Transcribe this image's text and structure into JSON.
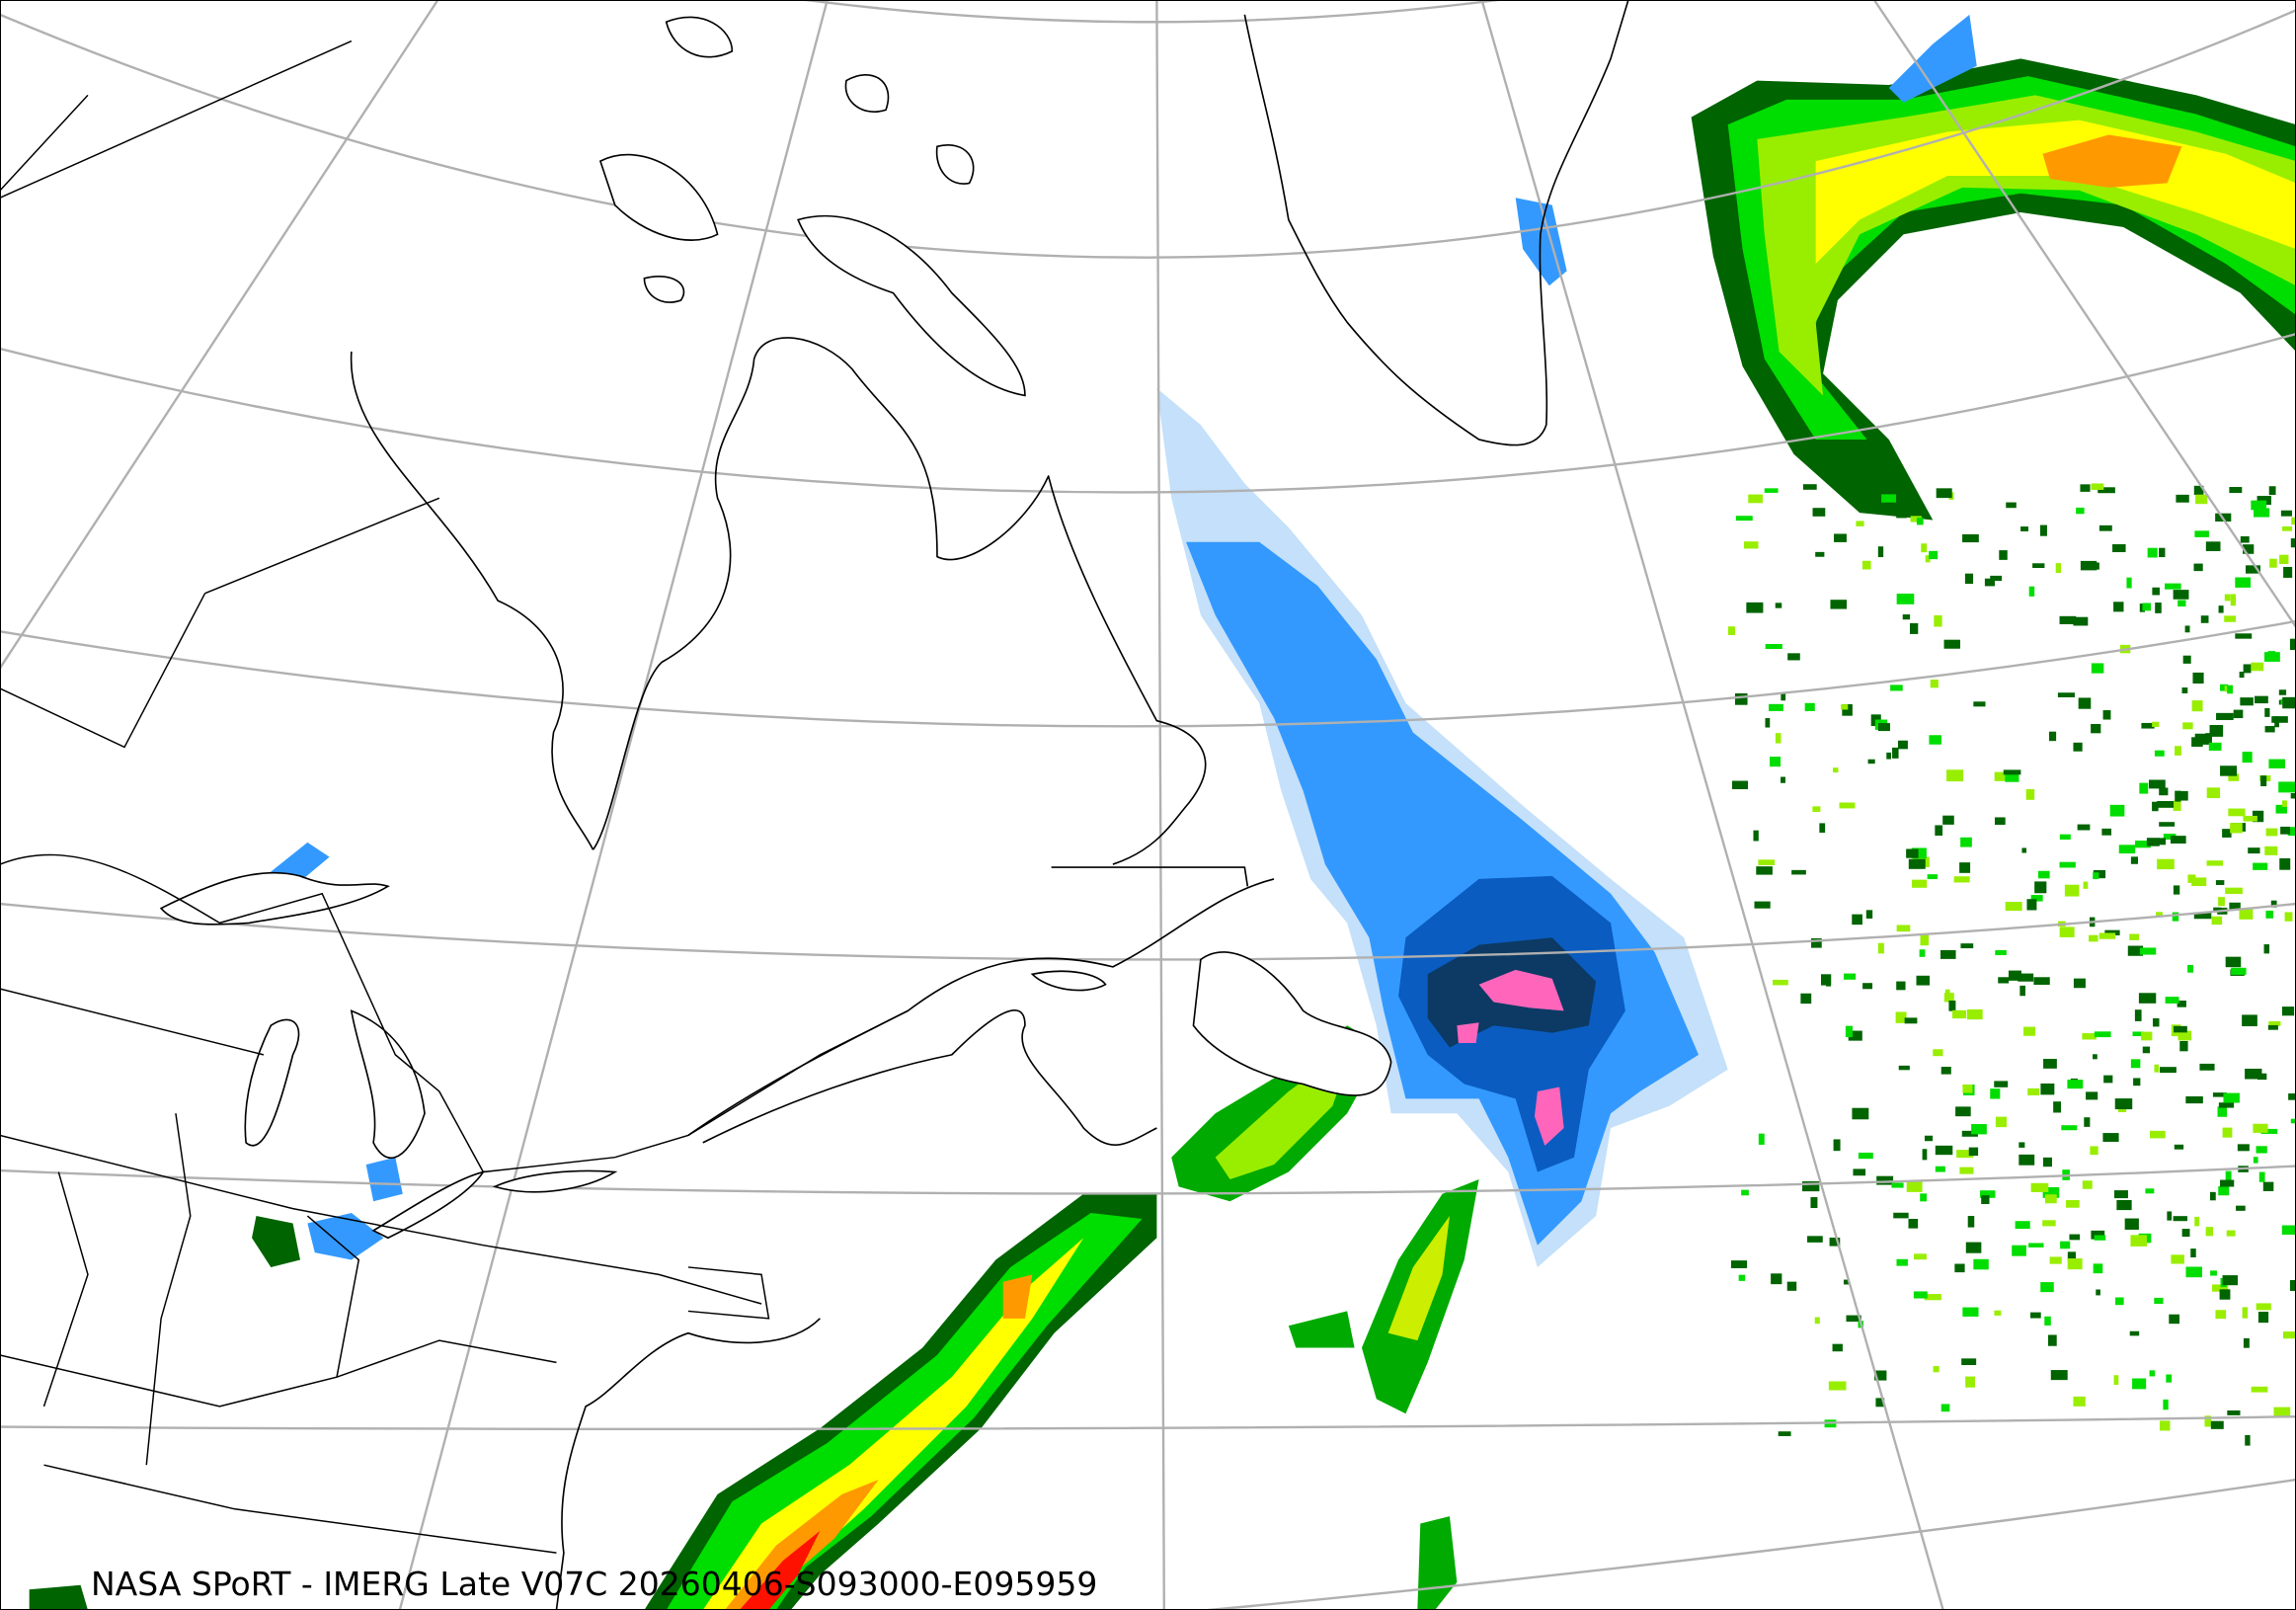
{
  "caption": "NASA SPoRT - IMERG Late V07C 20260406-S093000-E095959",
  "colors": {
    "liquid_light_green": "#00dd00",
    "liquid_dark_green": "#006400",
    "liquid_lime": "#99ee00",
    "liquid_yellow": "#ffff00",
    "liquid_orange": "#ff9900",
    "liquid_red": "#ff1100",
    "frozen_light_blue": "#c4e0fa",
    "frozen_blue": "#3399ff",
    "frozen_dark_blue": "#0a5cc0",
    "frozen_navy": "#0c3a64",
    "frozen_pink": "#ff66bb",
    "graticule": "#b0b0b0",
    "coastline": "#000000"
  }
}
